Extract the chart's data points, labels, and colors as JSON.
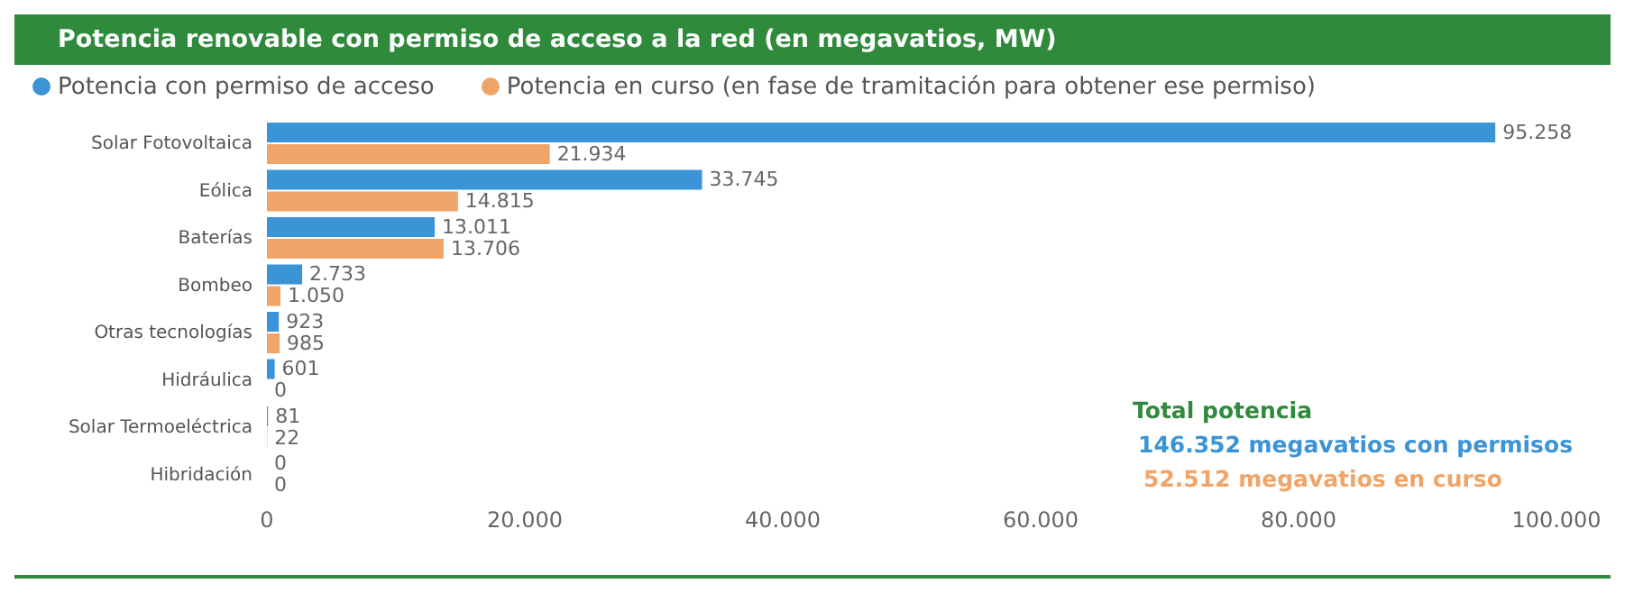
{
  "chart_data": {
    "type": "bar",
    "orientation": "horizontal",
    "title": "Potencia renovable con permiso de acceso a la red (en megavatios, MW)",
    "categories": [
      "Solar Fotovoltaica",
      "Eólica",
      "Baterías",
      "Bombeo",
      "Otras tecnologías",
      "Hidráulica",
      "Solar Termoeléctrica",
      "Hibridación"
    ],
    "series": [
      {
        "name": "Potencia con permiso de acceso",
        "color": "#3a94d6",
        "values": [
          95258,
          33745,
          13011,
          2733,
          923,
          601,
          81,
          0
        ],
        "value_labels": [
          "95.258",
          "33.745",
          "13.011",
          "2.733",
          "923",
          "601",
          "81",
          "0"
        ]
      },
      {
        "name": "Potencia en curso (en fase de tramitación para obtener ese permiso)",
        "color": "#f0a468",
        "values": [
          21934,
          14815,
          13706,
          1050,
          985,
          0,
          22,
          0
        ],
        "value_labels": [
          "21.934",
          "14.815",
          "13.706",
          "1.050",
          "985",
          "0",
          "22",
          "0"
        ]
      }
    ],
    "xlim": [
      0,
      100000
    ],
    "xticks": [
      0,
      {
        "value": 20000,
        "label": "20.000"
      },
      {
        "value": 40000,
        "label": "40.000"
      },
      {
        "value": 60000,
        "label": "60.000"
      },
      {
        "value": 80000,
        "label": "80.000"
      },
      {
        "value": 100000,
        "label": "100.000"
      }
    ],
    "legend": "top left",
    "annotations": [
      "Total potencia",
      "146.352 megavatios con permisos",
      "52.512 megavatios en curso"
    ]
  }
}
